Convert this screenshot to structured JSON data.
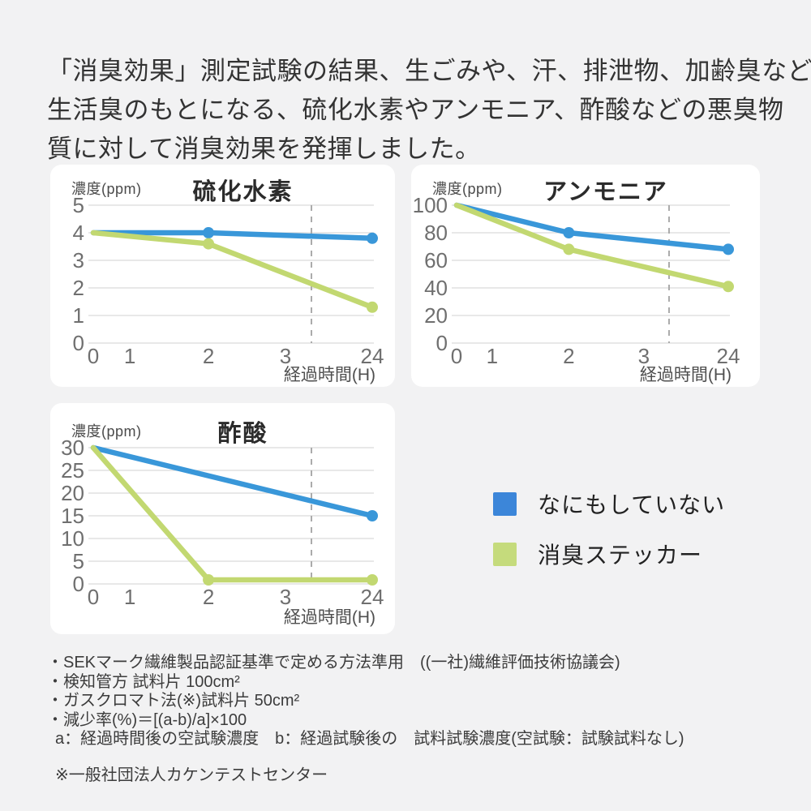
{
  "header": {
    "lines": [
      "「消臭効果」測定試験の結果、生ごみや、汗、排泄物、加齢臭など",
      "生活臭のもとになる、硫化水素やアンモニア、酢酸などの悪臭物",
      "質に対して消臭効果を発揮しました。"
    ]
  },
  "chart_data": [
    {
      "type": "line",
      "title": "硫化水素",
      "y_unit_label": "濃度(ppm)",
      "x_axis_label": "経過時間(H)",
      "x_ticks": [
        "0",
        "1",
        "2",
        "3",
        "24"
      ],
      "y_ticks": [
        0,
        1,
        2,
        3,
        4,
        5
      ],
      "ylim": [
        0,
        5
      ],
      "grid": "horizontal",
      "axis_break_note": "dashed vertical guide line between 3 and 24",
      "series": [
        {
          "name": "なにもしていない",
          "color_key": "blue",
          "points": [
            {
              "x": "0",
              "y": 4
            },
            {
              "x": "2",
              "y": 4
            },
            {
              "x": "24",
              "y": 3.8
            }
          ]
        },
        {
          "name": "消臭ステッカー",
          "color_key": "green",
          "points": [
            {
              "x": "0",
              "y": 4
            },
            {
              "x": "2",
              "y": 3.6
            },
            {
              "x": "24",
              "y": 1.3
            }
          ]
        }
      ]
    },
    {
      "type": "line",
      "title": "アンモニア",
      "y_unit_label": "濃度(ppm)",
      "x_axis_label": "経過時間(H)",
      "x_ticks": [
        "0",
        "1",
        "2",
        "3",
        "24"
      ],
      "y_ticks": [
        0,
        20,
        40,
        60,
        80,
        100
      ],
      "ylim": [
        0,
        100
      ],
      "grid": "horizontal",
      "axis_break_note": "dashed vertical guide line between 3 and 24",
      "series": [
        {
          "name": "なにもしていない",
          "color_key": "blue",
          "points": [
            {
              "x": "0",
              "y": 100
            },
            {
              "x": "2",
              "y": 80
            },
            {
              "x": "24",
              "y": 68
            }
          ]
        },
        {
          "name": "消臭ステッカー",
          "color_key": "green",
          "points": [
            {
              "x": "0",
              "y": 100
            },
            {
              "x": "2",
              "y": 68
            },
            {
              "x": "24",
              "y": 41
            }
          ]
        }
      ]
    },
    {
      "type": "line",
      "title": "酢酸",
      "y_unit_label": "濃度(ppm)",
      "x_axis_label": "経過時間(H)",
      "x_ticks": [
        "0",
        "1",
        "2",
        "3",
        "24"
      ],
      "y_ticks": [
        0,
        5,
        10,
        15,
        20,
        25,
        30
      ],
      "ylim": [
        0,
        30
      ],
      "grid": "horizontal",
      "axis_break_note": "dashed vertical guide line between 3 and 24",
      "series": [
        {
          "name": "なにもしていない",
          "color_key": "blue",
          "points": [
            {
              "x": "0",
              "y": 30
            },
            {
              "x": "24",
              "y": 15
            }
          ]
        },
        {
          "name": "消臭ステッカー",
          "color_key": "green",
          "points": [
            {
              "x": "0",
              "y": 30
            },
            {
              "x": "2",
              "y": 0
            },
            {
              "x": "24",
              "y": 0
            }
          ]
        }
      ]
    }
  ],
  "legend": {
    "items": [
      {
        "label": "なにもしていない",
        "color": "#3C86D9"
      },
      {
        "label": "消臭ステッカー",
        "color": "#C5DB7C"
      }
    ]
  },
  "footnotes": {
    "lines": [
      "・SEKマーク繊維製品認証基準で定める方法準用　((一社)繊維評価技術協議会)",
      "・検知管方 試料片 100cm²",
      "・ガスクロマト法(※)試料片 50cm²",
      "・減少率(%)＝[(a-b)/a]×100",
      "a：経過時間後の空試験濃度　b：経過試験後の　試料試験濃度(空試験：試験試料なし)"
    ],
    "source": "※一般社団法人カケンテストセンター"
  },
  "colors": {
    "blue_line": "#3997D9",
    "green_line": "#C2D871",
    "grid": "#DBDBDB",
    "dashed_guide": "#ABABAB",
    "tick_text": "#6F6F6F",
    "axis_text": "#4F4F4F",
    "card_background": "#FFFFFF",
    "page_background": "#F2F2F3"
  }
}
